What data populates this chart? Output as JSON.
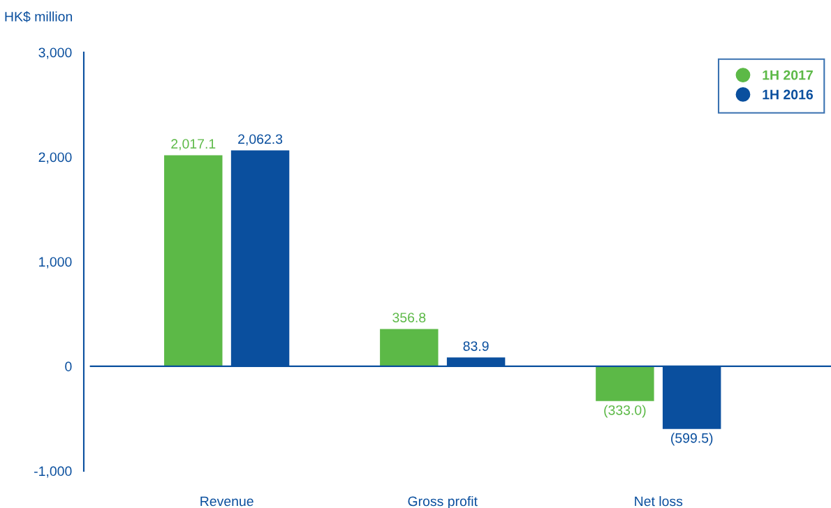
{
  "chart_data": {
    "type": "bar",
    "ylabel": "HK$ million",
    "categories": [
      "Revenue",
      "Gross profit",
      "Net loss"
    ],
    "series": [
      {
        "name": "1H 2017",
        "color": "#5cb947",
        "values": [
          2017.1,
          356.8,
          -333.0
        ],
        "value_labels": [
          "2,017.1",
          "356.8",
          "(333.0)"
        ]
      },
      {
        "name": "1H 2016",
        "color": "#0a4f9e",
        "values": [
          2062.3,
          83.9,
          -599.5
        ],
        "value_labels": [
          "2,062.3",
          "83.9",
          "(599.5)"
        ]
      }
    ],
    "ylim": [
      -1000,
      3000
    ],
    "yticks": [
      {
        "value": -1000,
        "label": "-1,000"
      },
      0,
      {
        "value": 1000,
        "label": "1,000"
      },
      {
        "value": 2000,
        "label": "2,000"
      },
      {
        "value": 3000,
        "label": "3,000"
      }
    ],
    "ref_lines": [
      {
        "axis": "y",
        "value": 0,
        "color": "#0a4f9e"
      }
    ],
    "grid": false,
    "legend": "top right"
  }
}
